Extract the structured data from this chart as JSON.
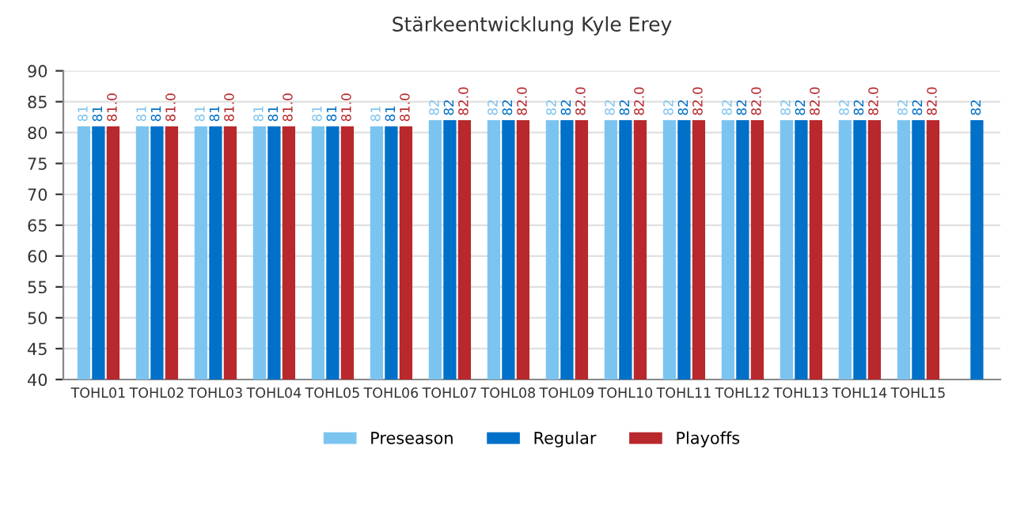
{
  "chart_data": {
    "type": "bar",
    "title": "Stärkeentwicklung Kyle Erey",
    "categories": [
      "TOHL01",
      "TOHL02",
      "TOHL03",
      "TOHL04",
      "TOHL05",
      "TOHL06",
      "TOHL07",
      "TOHL08",
      "TOHL09",
      "TOHL10",
      "TOHL11",
      "TOHL12",
      "TOHL13",
      "TOHL14",
      "TOHL15",
      null
    ],
    "series": [
      {
        "name": "Preseason",
        "color": "#7cc4f0",
        "values": [
          81,
          81,
          81,
          81,
          81,
          81,
          82,
          82,
          82,
          82,
          82,
          82,
          82,
          82,
          82,
          null
        ],
        "value_labels": [
          "81",
          "81",
          "81",
          "81",
          "81",
          "81",
          "82",
          "82",
          "82",
          "82",
          "82",
          "82",
          "82",
          "82",
          "82",
          null
        ]
      },
      {
        "name": "Regular",
        "color": "#0070c8",
        "values": [
          81,
          81,
          81,
          81,
          81,
          81,
          82,
          82,
          82,
          82,
          82,
          82,
          82,
          82,
          82,
          82
        ],
        "value_labels": [
          "81",
          "81",
          "81",
          "81",
          "81",
          "81",
          "82",
          "82",
          "82",
          "82",
          "82",
          "82",
          "82",
          "82",
          "82",
          "82"
        ]
      },
      {
        "name": "Playoffs",
        "color": "#b8282c",
        "values": [
          81,
          81,
          81,
          81,
          81,
          81,
          82,
          82,
          82,
          82,
          82,
          82,
          82,
          82,
          82,
          null
        ],
        "value_labels": [
          "81.0",
          "81.0",
          "81.0",
          "81.0",
          "81.0",
          "81.0",
          "82.0",
          "82.0",
          "82.0",
          "82.0",
          "82.0",
          "82.0",
          "82.0",
          "82.0",
          "82.0",
          null
        ]
      }
    ],
    "ylim": [
      40,
      90
    ],
    "yticks": [
      40,
      45,
      50,
      55,
      60,
      65,
      70,
      75,
      80,
      85,
      90
    ],
    "grid": "y",
    "legend": "bottom"
  }
}
